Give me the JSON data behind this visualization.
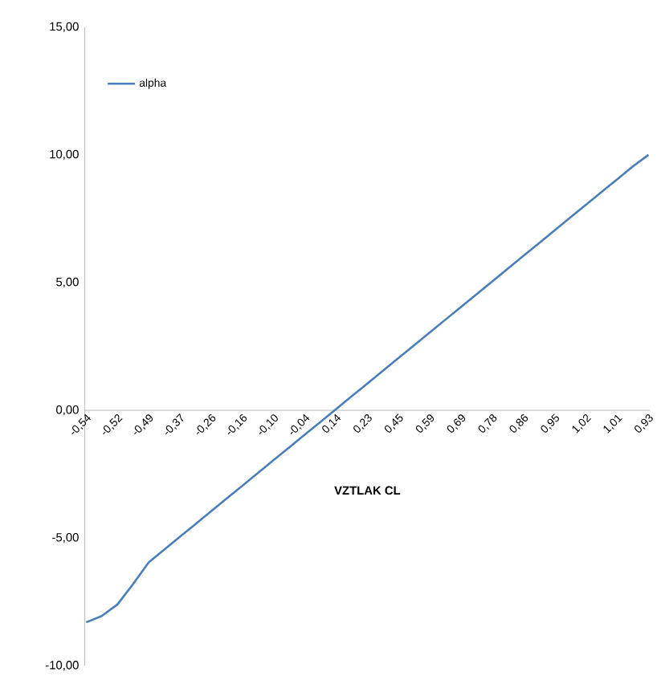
{
  "chart_data": {
    "type": "line",
    "xlabel": "VZTLAK CL",
    "categories": [
      "-0,54",
      null,
      "-0,52",
      null,
      "-0,49",
      null,
      "-0,37",
      null,
      "-0,26",
      null,
      "-0,16",
      null,
      "-0,10",
      null,
      "-0,04",
      null,
      "0,14",
      null,
      "0,23",
      null,
      "0,45",
      null,
      "0,59",
      null,
      "0,69",
      null,
      "0,78",
      null,
      "0,86",
      null,
      "0,95",
      null,
      "1,02",
      null,
      "1,01",
      null,
      "0,93"
    ],
    "series": [
      {
        "name": "alpha",
        "color": "#4a7ebb",
        "values": [
          -8.3,
          -8.05,
          -7.6,
          -6.8,
          -5.95,
          -5.45,
          -4.95,
          -4.45,
          -3.95,
          -3.45,
          -2.95,
          -2.45,
          -1.95,
          -1.45,
          -0.95,
          -0.45,
          0.05,
          0.55,
          1.05,
          1.55,
          2.05,
          2.55,
          3.05,
          3.55,
          4.05,
          4.55,
          5.05,
          5.55,
          6.05,
          6.55,
          7.05,
          7.55,
          8.05,
          8.55,
          9.05,
          9.55,
          10.0
        ]
      }
    ],
    "ylim": [
      -10,
      15
    ],
    "yticks": [
      {
        "value": -10,
        "label": "-10,00"
      },
      {
        "value": -5,
        "label": "-5,00"
      },
      {
        "value": 0,
        "label": "0,00"
      },
      {
        "value": 5,
        "label": "5,00"
      },
      {
        "value": 10,
        "label": "10,00"
      },
      {
        "value": 15,
        "label": "15,00"
      }
    ],
    "legend": "top left",
    "marker": "none",
    "line_style": "solid"
  }
}
